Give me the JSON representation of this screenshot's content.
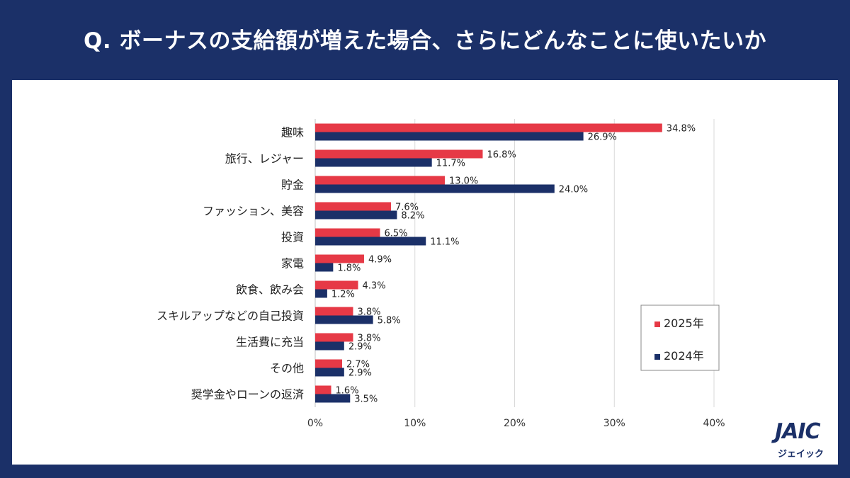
{
  "title": "Q. ボーナスの支給額が増えた場合、さらにどんなことに使いたいか",
  "chart_data": {
    "type": "bar",
    "orientation": "horizontal",
    "categories": [
      "趣味",
      "旅行、レジャー",
      "貯金",
      "ファッション、美容",
      "投資",
      "家電",
      "飲食、飲み会",
      "スキルアップなどの自己投資",
      "生活費に充当",
      "その他",
      "奨学金やローンの返済"
    ],
    "series": [
      {
        "name": "2025年",
        "color": "#e63946",
        "values": [
          34.8,
          16.8,
          13.0,
          7.6,
          6.5,
          4.9,
          4.3,
          3.8,
          3.8,
          2.7,
          1.6
        ]
      },
      {
        "name": "2024年",
        "color": "#1b3068",
        "values": [
          26.9,
          11.7,
          24.0,
          8.2,
          11.1,
          1.8,
          1.2,
          5.8,
          2.9,
          2.9,
          3.5
        ]
      }
    ],
    "xlim": [
      0,
      40
    ],
    "xticks": [
      "0%",
      "10%",
      "20%",
      "30%",
      "40%"
    ],
    "value_suffix": "%",
    "grid": true,
    "legend_position": "right"
  },
  "logo": {
    "mark": "JAIC",
    "sub": "ジェイック"
  }
}
